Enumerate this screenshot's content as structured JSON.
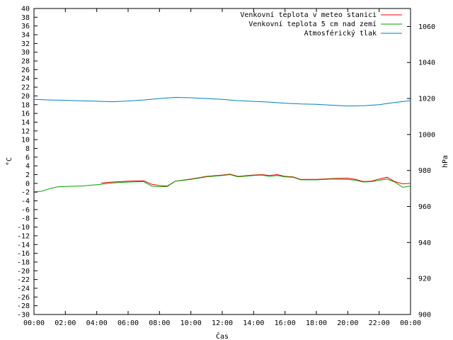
{
  "chart_data": {
    "type": "line",
    "xlabel": "Čas",
    "ylabel_left": "°C",
    "ylabel_right": "hPa",
    "x_unit": "hours",
    "x_ticks": [
      "00:00",
      "02:00",
      "04:00",
      "06:00",
      "08:00",
      "10:00",
      "12:00",
      "14:00",
      "16:00",
      "18:00",
      "20:00",
      "22:00",
      "00:00"
    ],
    "xlim": [
      0,
      24
    ],
    "ylim_left": [
      -30,
      40
    ],
    "ylim_right": [
      900,
      1070
    ],
    "y_ticks_left": [
      40,
      38,
      36,
      34,
      32,
      30,
      28,
      26,
      24,
      22,
      20,
      18,
      16,
      14,
      12,
      10,
      8,
      6,
      4,
      2,
      0,
      -2,
      -4,
      -6,
      -8,
      -10,
      -12,
      -14,
      -16,
      -18,
      -20,
      -22,
      -24,
      -26,
      -28,
      -30
    ],
    "y_ticks_right": [
      1060,
      1040,
      1020,
      1000,
      980,
      960,
      940,
      920,
      900
    ],
    "legend_position": "top-right",
    "series": [
      {
        "name": "Venkovní teplota v meteo stanici",
        "color": "#ff0000",
        "axis": "left",
        "x": [
          4.3,
          5,
          6,
          7,
          7.5,
          8,
          8.5,
          9,
          10,
          11,
          12,
          12.5,
          13,
          14,
          14.5,
          15,
          15.5,
          16,
          16.5,
          17,
          18,
          19,
          20,
          20.5,
          21,
          21.5,
          22,
          22.5,
          23,
          23.5,
          24
        ],
        "y": [
          0.1,
          0.3,
          0.5,
          0.6,
          -0.2,
          -0.5,
          -0.6,
          0.5,
          1.0,
          1.6,
          1.9,
          2.1,
          1.6,
          1.9,
          2.0,
          1.8,
          2.0,
          1.6,
          1.5,
          0.9,
          0.9,
          1.1,
          1.2,
          0.9,
          0.4,
          0.5,
          1.0,
          1.4,
          0.4,
          -0.1,
          0.0
        ]
      },
      {
        "name": "Venkovní teplota 5 cm nad zemí",
        "color": "#00a000",
        "axis": "left",
        "x": [
          0,
          0.5,
          1,
          1.5,
          2,
          3,
          4,
          5,
          6,
          7,
          7.5,
          8,
          8.5,
          9,
          10,
          11,
          12,
          12.5,
          13,
          14,
          14.5,
          15,
          15.5,
          16,
          16.5,
          17,
          18,
          19,
          20,
          20.5,
          21,
          21.5,
          22,
          22.5,
          23,
          23.5,
          24
        ],
        "y": [
          -1.9,
          -1.8,
          -1.2,
          -0.8,
          -0.7,
          -0.6,
          -0.3,
          0.1,
          0.3,
          0.4,
          -0.6,
          -0.8,
          -0.7,
          0.5,
          0.9,
          1.5,
          1.8,
          2.0,
          1.5,
          1.8,
          1.9,
          1.6,
          1.8,
          1.5,
          1.4,
          0.8,
          0.8,
          1.0,
          0.9,
          0.7,
          0.3,
          0.4,
          0.7,
          1.0,
          0.3,
          -0.9,
          -0.6
        ]
      },
      {
        "name": "Atmosférický tlak",
        "color": "#0080c0",
        "axis": "right",
        "x": [
          0,
          1,
          2,
          3,
          4,
          5,
          6,
          7,
          8,
          9,
          10,
          11,
          12,
          13,
          14,
          15,
          16,
          17,
          18,
          19,
          20,
          21,
          22,
          23,
          24
        ],
        "y": [
          1019.5,
          1019.2,
          1019.0,
          1018.7,
          1018.5,
          1018.2,
          1018.6,
          1019.2,
          1020.0,
          1020.6,
          1020.4,
          1020.0,
          1019.5,
          1018.8,
          1018.4,
          1018.0,
          1017.4,
          1017.0,
          1016.8,
          1016.3,
          1015.8,
          1016.0,
          1016.6,
          1017.8,
          1018.8
        ]
      }
    ]
  }
}
